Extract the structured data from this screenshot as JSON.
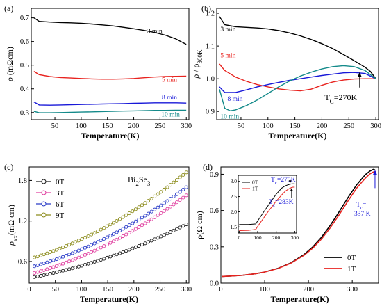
{
  "chart_data": [
    {
      "panel": "(a)",
      "type": "line",
      "xlabel": "Temperature(K)",
      "ylabel_parts": [
        "ρ",
        " (mΩcm)"
      ],
      "xlim": [
        5,
        305
      ],
      "ylim": [
        0.27,
        0.74
      ],
      "xticks": [
        50,
        100,
        150,
        200,
        250,
        300
      ],
      "yticks": [
        0.3,
        0.4,
        0.5,
        0.6,
        0.7
      ],
      "ytick_labels": [
        "0.3",
        "0.4",
        "0.5",
        "0.6",
        "0.7"
      ],
      "series": [
        {
          "name": "3 min",
          "color": "#000000",
          "label_at": [
            240,
            0.635
          ],
          "x": [
            10,
            20,
            40,
            60,
            80,
            100,
            120,
            140,
            160,
            180,
            200,
            220,
            240,
            260,
            280,
            300
          ],
          "y": [
            0.7,
            0.685,
            0.682,
            0.68,
            0.679,
            0.677,
            0.674,
            0.67,
            0.666,
            0.66,
            0.654,
            0.647,
            0.638,
            0.627,
            0.611,
            0.588
          ]
        },
        {
          "name": "5 min",
          "color": "#e8231f",
          "label_at": [
            268,
            0.43
          ],
          "x": [
            10,
            20,
            40,
            60,
            80,
            100,
            120,
            140,
            160,
            180,
            200,
            220,
            240,
            260,
            280,
            300
          ],
          "y": [
            0.474,
            0.46,
            0.452,
            0.448,
            0.446,
            0.444,
            0.442,
            0.441,
            0.441,
            0.442,
            0.444,
            0.447,
            0.45,
            0.452,
            0.453,
            0.454
          ]
        },
        {
          "name": "8 min",
          "color": "#1818d8",
          "label_at": [
            268,
            0.355
          ],
          "x": [
            10,
            20,
            40,
            60,
            80,
            100,
            120,
            140,
            160,
            180,
            200,
            220,
            240,
            260,
            280,
            300
          ],
          "y": [
            0.345,
            0.332,
            0.331,
            0.332,
            0.333,
            0.334,
            0.335,
            0.336,
            0.337,
            0.338,
            0.339,
            0.34,
            0.341,
            0.341,
            0.341,
            0.34
          ]
        },
        {
          "name": "10 min",
          "color": "#148a8a",
          "label_at": [
            270,
            0.283
          ],
          "x": [
            10,
            20,
            40,
            60,
            80,
            100,
            120,
            140,
            160,
            180,
            200,
            220,
            240,
            260,
            280,
            300
          ],
          "y": [
            0.305,
            0.299,
            0.299,
            0.3,
            0.301,
            0.302,
            0.303,
            0.304,
            0.305,
            0.306,
            0.307,
            0.308,
            0.309,
            0.309,
            0.31,
            0.31
          ]
        }
      ]
    },
    {
      "panel": "(b)",
      "type": "line",
      "xlabel": "Temperature(K)",
      "ylabel_parts": [
        "ρ",
        " / ρ",
        "300K"
      ],
      "xlim": [
        5,
        305
      ],
      "ylim": [
        0.875,
        1.215
      ],
      "xticks": [
        50,
        100,
        150,
        200,
        250,
        300
      ],
      "yticks": [
        0.9,
        1.0,
        1.1,
        1.2
      ],
      "ytick_labels": [
        "0.9",
        "1.0",
        "1.1",
        "1.2"
      ],
      "series": [
        {
          "name": "3 min",
          "color": "#000000",
          "label_at": [
            12,
            1.145
          ],
          "x": [
            10,
            20,
            40,
            60,
            80,
            100,
            120,
            140,
            160,
            180,
            200,
            220,
            240,
            260,
            280,
            290,
            300
          ],
          "y": [
            1.19,
            1.165,
            1.159,
            1.157,
            1.155,
            1.152,
            1.147,
            1.14,
            1.131,
            1.12,
            1.107,
            1.092,
            1.074,
            1.055,
            1.035,
            1.022,
            1.0
          ]
        },
        {
          "name": "5 min",
          "color": "#e8231f",
          "label_at": [
            12,
            1.065
          ],
          "x": [
            10,
            20,
            40,
            60,
            80,
            100,
            120,
            140,
            160,
            180,
            200,
            220,
            240,
            260,
            280,
            300
          ],
          "y": [
            1.045,
            1.025,
            1.005,
            0.992,
            0.982,
            0.975,
            0.969,
            0.965,
            0.963,
            0.968,
            0.98,
            0.99,
            0.996,
            0.999,
            1.0,
            1.0
          ]
        },
        {
          "name": "8 min",
          "color": "#1818d8",
          "label_at": [
            25,
            0.932
          ],
          "x": [
            10,
            20,
            40,
            60,
            80,
            100,
            120,
            140,
            160,
            180,
            200,
            220,
            240,
            260,
            280,
            300
          ],
          "y": [
            0.975,
            0.958,
            0.958,
            0.966,
            0.975,
            0.982,
            0.989,
            0.995,
            1.0,
            1.005,
            1.01,
            1.014,
            1.018,
            1.019,
            1.016,
            1.0
          ]
        },
        {
          "name": "10 min",
          "color": "#148a8a",
          "label_at": [
            12,
            0.878
          ],
          "x": [
            10,
            20,
            30,
            40,
            60,
            80,
            100,
            120,
            140,
            160,
            180,
            200,
            220,
            240,
            260,
            280,
            300
          ],
          "y": [
            0.968,
            0.91,
            0.902,
            0.905,
            0.918,
            0.935,
            0.955,
            0.975,
            0.993,
            1.008,
            1.02,
            1.03,
            1.037,
            1.04,
            1.037,
            1.025,
            1.0
          ]
        }
      ],
      "annotations": [
        {
          "text_parts": [
            "T",
            "C",
            "=270K"
          ],
          "color": "#1818d8",
          "x": 205,
          "y": 0.935,
          "arrow_to": [
            270,
            1.02
          ]
        }
      ]
    },
    {
      "panel": "(c)",
      "type": "scatter",
      "inset_title_parts": [
        "Bi",
        "2",
        "Se",
        "3"
      ],
      "xlabel": "Temperature(K)",
      "ylabel_parts": [
        "ρ",
        "xx",
        "(mΩ cm)"
      ],
      "xlim": [
        0,
        305
      ],
      "ylim": [
        0.28,
        2.0
      ],
      "xticks": [
        0,
        50,
        100,
        150,
        200,
        250,
        300
      ],
      "yticks": [
        0.6,
        1.2,
        1.8
      ],
      "ytick_labels": [
        "0.6",
        "1.2",
        "1.8"
      ],
      "series": [
        {
          "name": "0T",
          "color": "#222222",
          "x_start": 10,
          "x_end": 300,
          "y_start": 0.37,
          "y_end": 1.15
        },
        {
          "name": "3T",
          "color": "#e040a0",
          "x_start": 10,
          "x_end": 300,
          "y_start": 0.43,
          "y_end": 1.58
        },
        {
          "name": "6T",
          "color": "#2a3cc8",
          "x_start": 10,
          "x_end": 300,
          "y_start": 0.53,
          "y_end": 1.7
        },
        {
          "name": "9T",
          "color": "#8c8c1c",
          "x_start": 10,
          "x_end": 300,
          "y_start": 0.66,
          "y_end": 1.92
        }
      ]
    },
    {
      "panel": "(d)",
      "type": "line",
      "xlabel": "Temperature(K)",
      "ylabel": "ρ(Ω cm)",
      "xlim": [
        0,
        360
      ],
      "ylim": [
        0,
        0.96
      ],
      "xticks": [
        0,
        100,
        200,
        300
      ],
      "yticks": [
        0.0,
        0.3,
        0.6,
        0.9
      ],
      "ytick_labels": [
        "0.0",
        "0.3",
        "0.6",
        "0.9"
      ],
      "series": [
        {
          "name": "0T",
          "color": "#000000",
          "x": [
            2,
            20,
            50,
            80,
            100,
            130,
            160,
            190,
            210,
            230,
            250,
            270,
            290,
            310,
            330,
            340,
            348,
            352
          ],
          "y": [
            0.055,
            0.058,
            0.065,
            0.078,
            0.092,
            0.122,
            0.168,
            0.236,
            0.3,
            0.38,
            0.478,
            0.59,
            0.706,
            0.812,
            0.897,
            0.925,
            0.94,
            0.935
          ]
        },
        {
          "name": "1T",
          "color": "#e8231f",
          "x": [
            2,
            20,
            50,
            80,
            100,
            130,
            160,
            190,
            210,
            230,
            250,
            270,
            290,
            310,
            330,
            340,
            348,
            355
          ],
          "y": [
            0.055,
            0.058,
            0.065,
            0.078,
            0.092,
            0.12,
            0.165,
            0.23,
            0.29,
            0.365,
            0.458,
            0.565,
            0.678,
            0.785,
            0.868,
            0.902,
            0.918,
            0.922
          ]
        }
      ],
      "annotations": [
        {
          "text_parts": [
            "T",
            "c",
            "=",
            "337 K"
          ],
          "color": "#1818d8",
          "arrow_to": [
            352,
            0.935
          ]
        }
      ],
      "inset": {
        "xlim": [
          -5,
          310
        ],
        "ylim": [
          1.3,
          3.2
        ],
        "xticks": [
          0,
          100,
          200,
          300
        ],
        "yticks": [
          1.5,
          2.0,
          2.5,
          3.0
        ],
        "ytick_labels": [
          "1.5",
          "2.0",
          "2.5",
          "3.0"
        ],
        "series": [
          {
            "name": "0T",
            "color": "#000000",
            "x": [
              0,
              50,
              90,
              100,
              150,
              200,
              230,
              250,
              270,
              285,
              300
            ],
            "y": [
              1.58,
              1.58,
              1.6,
              1.7,
              2.15,
              2.58,
              2.78,
              2.86,
              2.9,
              2.92,
              2.92
            ]
          },
          {
            "name": "1T",
            "color": "#e8231f",
            "x": [
              0,
              50,
              90,
              100,
              150,
              200,
              230,
              250,
              270,
              283,
              290,
              300
            ],
            "y": [
              1.38,
              1.39,
              1.42,
              1.52,
              1.95,
              2.35,
              2.56,
              2.68,
              2.76,
              2.8,
              2.81,
              2.81
            ]
          }
        ],
        "annotations": [
          {
            "text_parts": [
              "T",
              "c",
              "=275K"
            ],
            "color": "#1818d8",
            "arrow_to": [
              275,
              2.92
            ]
          },
          {
            "text_parts": [
              "T",
              "c",
              "=283K"
            ],
            "color": "#1818d8",
            "arrow_to": [
              283,
              2.8
            ]
          }
        ]
      }
    }
  ]
}
